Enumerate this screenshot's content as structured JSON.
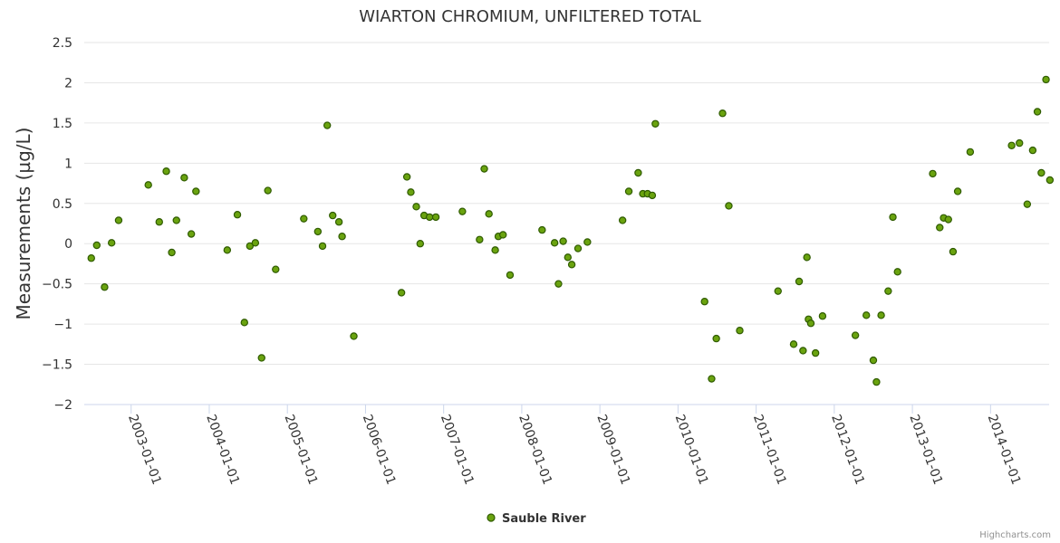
{
  "chart_data": {
    "type": "scatter",
    "title": "WIARTON CHROMIUM, UNFILTERED TOTAL",
    "ylabel": "Measurements (µg/L)",
    "xlabel": "",
    "ylim": [
      -2,
      2.5
    ],
    "yticks": [
      2.5,
      2,
      1.5,
      1,
      0.5,
      0,
      -0.5,
      -1,
      -1.5,
      -2
    ],
    "ytick_labels": [
      "2.5",
      "2",
      "1.5",
      "1",
      "0.5",
      "0",
      "−0.5",
      "−1",
      "−1.5",
      "−2"
    ],
    "xlim": [
      2002.4,
      2014.75
    ],
    "xticks": [
      2003,
      2004,
      2005,
      2006,
      2007,
      2008,
      2009,
      2010,
      2011,
      2012,
      2013,
      2014
    ],
    "xtick_labels": [
      "2003-01-01",
      "2004-01-01",
      "2005-01-01",
      "2006-01-01",
      "2007-01-01",
      "2008-01-01",
      "2009-01-01",
      "2010-01-01",
      "2011-01-01",
      "2012-01-01",
      "2013-01-01",
      "2014-01-01"
    ],
    "legend": "bottom-center",
    "series": [
      {
        "name": "Sauble River",
        "color": "#6aa30f",
        "x": [
          2002.49,
          2002.56,
          2002.66,
          2002.75,
          2002.84,
          2003.22,
          2003.36,
          2003.45,
          2003.52,
          2003.58,
          2003.68,
          2003.77,
          2003.83,
          2004.23,
          2004.36,
          2004.45,
          2004.52,
          2004.59,
          2004.67,
          2004.75,
          2004.85,
          2005.21,
          2005.39,
          2005.45,
          2005.51,
          2005.58,
          2005.66,
          2005.7,
          2005.85,
          2006.46,
          2006.53,
          2006.58,
          2006.65,
          2006.7,
          2006.75,
          2006.82,
          2006.9,
          2007.24,
          2007.46,
          2007.52,
          2007.58,
          2007.66,
          2007.7,
          2007.76,
          2007.85,
          2008.26,
          2008.42,
          2008.47,
          2008.53,
          2008.59,
          2008.64,
          2008.72,
          2008.84,
          2009.29,
          2009.37,
          2009.49,
          2009.55,
          2009.61,
          2009.67,
          2009.71,
          2010.34,
          2010.43,
          2010.49,
          2010.57,
          2010.65,
          2010.79,
          2011.28,
          2011.48,
          2011.55,
          2011.6,
          2011.65,
          2011.67,
          2011.7,
          2011.76,
          2011.85,
          2012.27,
          2012.41,
          2012.5,
          2012.54,
          2012.6,
          2012.69,
          2012.75,
          2012.81,
          2013.26,
          2013.35,
          2013.4,
          2013.46,
          2013.52,
          2013.58,
          2013.74,
          2014.27,
          2014.37,
          2014.47,
          2014.54,
          2014.6,
          2014.65,
          2014.71,
          2014.76
        ],
        "y": [
          -0.18,
          -0.02,
          -0.54,
          0.01,
          0.29,
          0.73,
          0.27,
          0.9,
          -0.11,
          0.29,
          0.82,
          0.12,
          0.65,
          -0.08,
          0.36,
          -0.98,
          -0.03,
          0.01,
          -1.42,
          0.66,
          -0.32,
          0.31,
          0.15,
          -0.03,
          1.47,
          0.35,
          0.27,
          0.09,
          -1.15,
          -0.61,
          0.83,
          0.64,
          0.46,
          0.0,
          0.35,
          0.33,
          0.33,
          0.4,
          0.05,
          0.93,
          0.37,
          -0.08,
          0.09,
          0.11,
          -0.39,
          0.17,
          0.01,
          -0.5,
          0.03,
          -0.17,
          -0.26,
          -0.06,
          0.02,
          0.29,
          0.65,
          0.88,
          0.62,
          0.62,
          0.6,
          1.49,
          -0.72,
          -1.68,
          -1.18,
          1.62,
          0.47,
          -1.08,
          -0.59,
          -1.25,
          -0.47,
          -1.33,
          -0.17,
          -0.94,
          -0.99,
          -1.36,
          -0.9,
          -1.14,
          -0.89,
          -1.45,
          -1.72,
          -0.89,
          -0.59,
          0.33,
          -0.35,
          0.87,
          0.2,
          0.32,
          0.3,
          -0.1,
          0.65,
          1.14,
          1.22,
          1.25,
          0.49,
          1.16,
          1.64,
          0.88,
          2.04,
          0.79
        ]
      }
    ]
  },
  "credits": "Highcharts.com"
}
